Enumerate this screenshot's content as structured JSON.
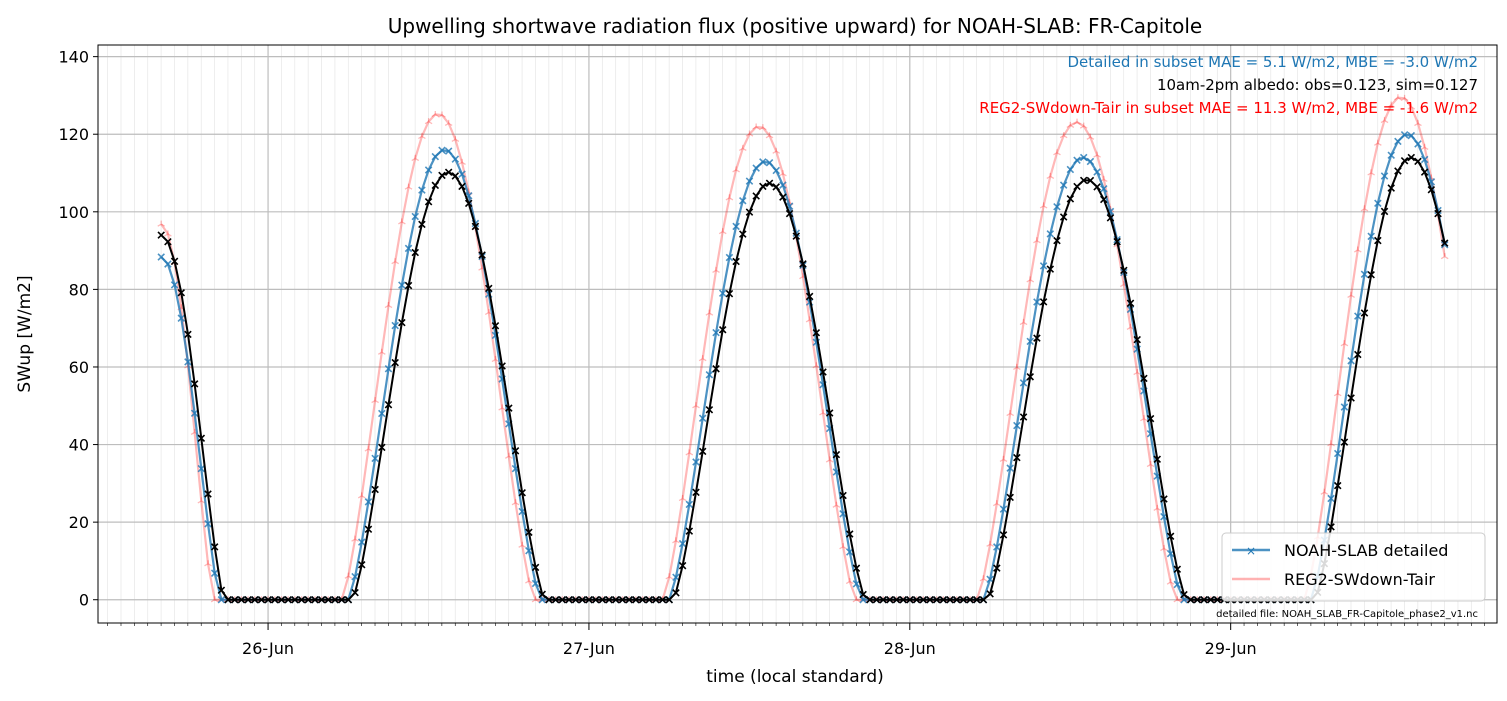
{
  "chart_data": {
    "type": "line",
    "title": "Upwelling shortwave radiation flux (positive upward) for NOAH-SLAB: FR-Capitole",
    "xlabel": "time (local standard)",
    "ylabel": "SWup [W/m2]",
    "ylim": [
      -6,
      143
    ],
    "yticks": [
      0,
      20,
      40,
      60,
      80,
      100,
      120,
      140
    ],
    "xlim": [
      25.47,
      29.83
    ],
    "xticks": [
      {
        "value": 26,
        "label": "26-Jun"
      },
      {
        "value": 27,
        "label": "27-Jun"
      },
      {
        "value": 28,
        "label": "28-Jun"
      },
      {
        "value": 29,
        "label": "29-Jun"
      }
    ],
    "grid": true,
    "legend_position": "bottom-right",
    "annotations": {
      "detailed_stats": "Detailed in subset MAE = 5.1 W/m2, MBE = -3.0 W/m2",
      "albedo": "10am-2pm albedo: obs=0.123, sim=0.127",
      "reg2_stats": "REG2-SWdown-Tair in subset MAE = 11.3 W/m2, MBE = -1.6 W/m2",
      "file_note": "detailed file: NOAH_SLAB_FR-Capitole_phase2_v1.nc"
    },
    "colors": {
      "detailed": "#1f77b4",
      "reg2": "#ff0000",
      "observed": "#000000",
      "detailed_annotation": "#1f77b4",
      "reg2_annotation": "#ff0000"
    },
    "series": [
      {
        "name": "NOAH-SLAB detailed",
        "shift": 0.0,
        "scale": 1.0,
        "start_scale": 0.94
      },
      {
        "name": "REG2-SWdown-Tair",
        "shift": -0.02,
        "scale": 1.08,
        "start_scale": 1.03
      },
      {
        "name": "",
        "shift": 0.012,
        "scale": 0.95,
        "start_scale": 1.0
      }
    ],
    "days": [
      {
        "day": 25,
        "sunrise": null,
        "sunset": 25.85,
        "peak": 0,
        "start_value": 94,
        "start_time": 25.667
      },
      {
        "day": 26,
        "sunrise": 26.25,
        "sunset": 26.85,
        "peak": 116
      },
      {
        "day": 27,
        "sunrise": 27.25,
        "sunset": 27.85,
        "peak": 113
      },
      {
        "day": 28,
        "sunrise": 28.23,
        "sunset": 28.85,
        "peak": 114
      },
      {
        "day": 29,
        "sunrise": 29.25,
        "sunset": null,
        "peak": 120,
        "end_time": 29.667
      }
    ]
  }
}
